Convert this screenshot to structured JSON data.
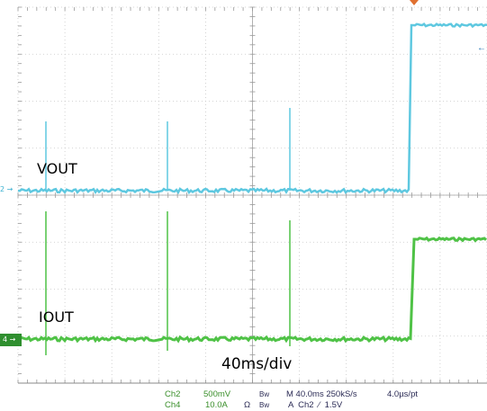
{
  "labels": {
    "ch2_name": "VOUT",
    "ch4_name": "IOUT",
    "timebase": "40ms/div"
  },
  "markers": {
    "ch2": "2 →",
    "ch4": "4 →"
  },
  "readout": {
    "ch2_label": "Ch2",
    "ch2_scale": "500mV",
    "ch2_bw": "Bw",
    "ch4_label": "Ch4",
    "ch4_scale": "10.0A",
    "ch4_unit": "Ω",
    "ch4_bw": "Bw",
    "horizontal": "M 40.0ms 250kS/s",
    "resolution": "4.0µs/pt",
    "trigger": "A  Ch2  ⁄  1.5V"
  },
  "colors": {
    "ch2": "#5ec8e0",
    "ch4": "#4fc246",
    "grid": "#c8c8c8",
    "marker4": "#2f8f2f"
  }
}
